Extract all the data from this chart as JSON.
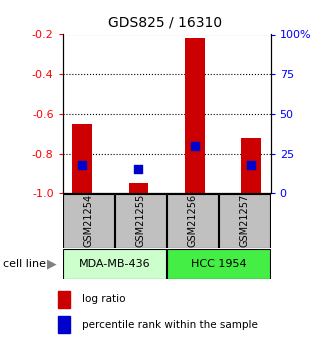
{
  "title": "GDS825 / 16310",
  "samples": [
    "GSM21254",
    "GSM21255",
    "GSM21256",
    "GSM21257"
  ],
  "log_ratios": [
    -0.65,
    -0.95,
    -0.22,
    -0.72
  ],
  "percentile_ranks": [
    18,
    15,
    30,
    18
  ],
  "cell_lines": [
    {
      "label": "MDA-MB-436",
      "samples": [
        0,
        1
      ],
      "color": "#ccffcc"
    },
    {
      "label": "HCC 1954",
      "samples": [
        2,
        3
      ],
      "color": "#44ee44"
    }
  ],
  "ylim_left": [
    -1.0,
    -0.2
  ],
  "ylim_right": [
    0,
    100
  ],
  "yticks_left": [
    -1.0,
    -0.8,
    -0.6,
    -0.4,
    -0.2
  ],
  "yticks_right": [
    0,
    25,
    50,
    75,
    100
  ],
  "ytick_labels_right": [
    "0",
    "25",
    "50",
    "75",
    "100%"
  ],
  "bar_color": "#cc0000",
  "dot_color": "#0000cc",
  "bar_width": 0.35,
  "dot_size": 40,
  "legend_items": [
    "log ratio",
    "percentile rank within the sample"
  ],
  "cell_line_label": "cell line",
  "sample_box_color": "#c0c0c0",
  "title_fontsize": 10,
  "tick_fontsize": 8,
  "sample_fontsize": 7,
  "cell_fontsize": 8,
  "legend_fontsize": 7.5
}
